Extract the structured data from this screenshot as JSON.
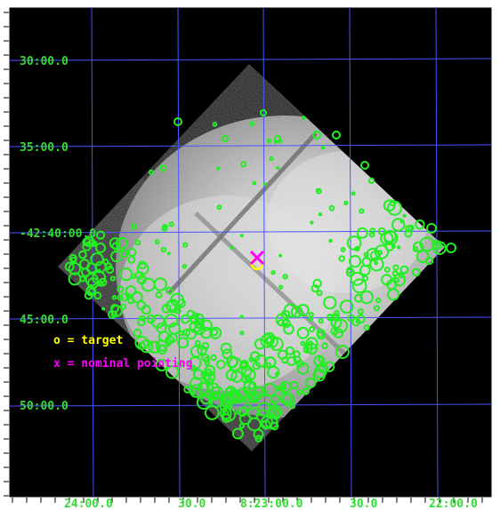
{
  "figure": {
    "ra_labels": [
      "24:00.0",
      "30.0",
      "8:23:00.0",
      "30.0",
      "22:00.0"
    ],
    "dec_labels": [
      "30:00.0",
      "35:00.0",
      "-42:40:00.0",
      "45:00.0",
      "50:00.0"
    ],
    "legend": {
      "target_text": "o = target",
      "pointing_text": "x = nominal pointing"
    },
    "colors": {
      "background": "#000000",
      "frame": "#ffffff",
      "grid": "#4a55ff",
      "axis_label": "#33dd33",
      "source_circles": "#22ee22",
      "target": "#ffff00",
      "pointing": "#ff00ff"
    },
    "symbols": {
      "target_icon": "circle",
      "pointing_icon": "x-mark"
    }
  }
}
